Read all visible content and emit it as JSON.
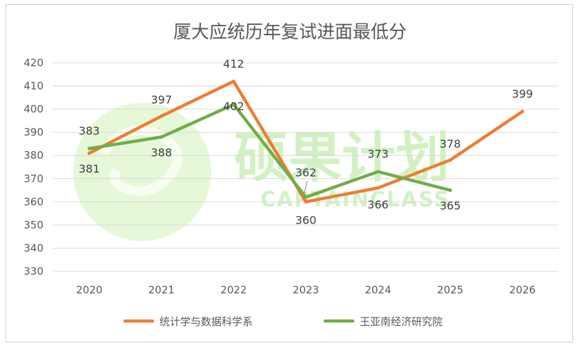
{
  "chart_data": {
    "type": "line",
    "title": "厦大应统历年复试进面最低分",
    "categories": [
      "2020",
      "2021",
      "2022",
      "2023",
      "2024",
      "2025",
      "2026"
    ],
    "ylim": [
      330,
      420
    ],
    "yticks": [
      420,
      410,
      400,
      390,
      380,
      370,
      360,
      350,
      340,
      330
    ],
    "grid": true,
    "legend_position": "bottom",
    "series": [
      {
        "name": "统计学与数据科学系",
        "color": "#ed7d31",
        "values": [
          381,
          397,
          412,
          360,
          366,
          378,
          399
        ]
      },
      {
        "name": "王亚南经济研究院",
        "color": "#70ad47",
        "values": [
          383,
          388,
          402,
          362,
          373,
          365,
          null
        ]
      }
    ]
  },
  "watermark": {
    "logo_text": "硕果计划",
    "logo_subtext": "CAPTAINCLASS",
    "logo_color": "#7ed957"
  }
}
